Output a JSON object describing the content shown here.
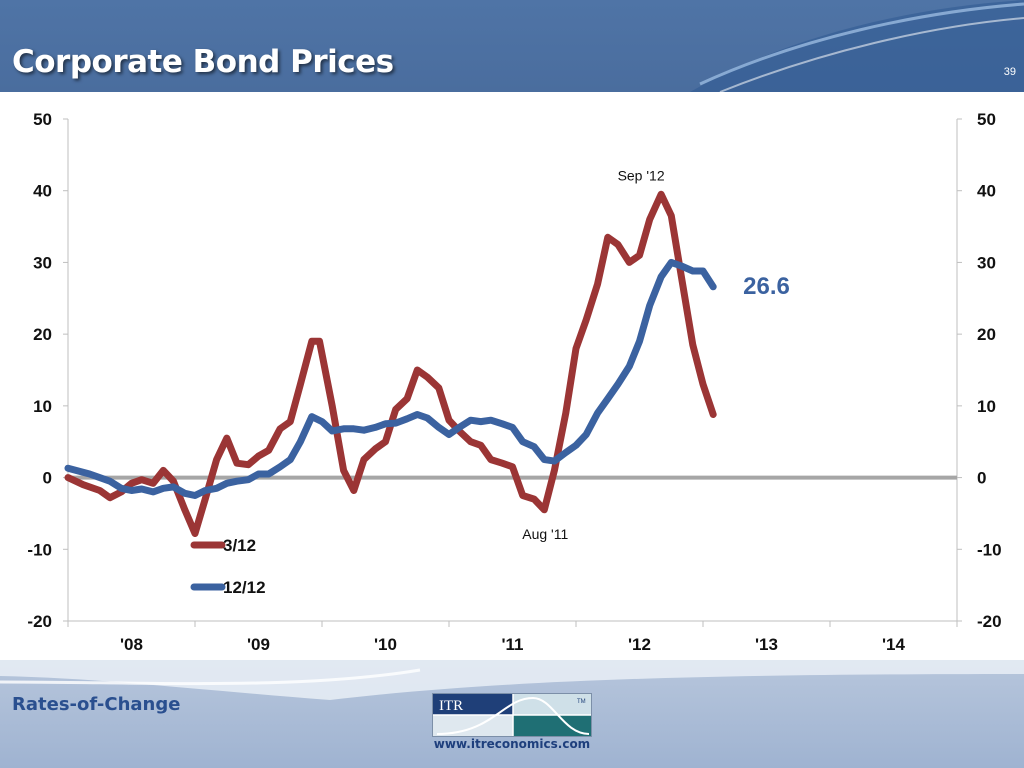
{
  "header": {
    "title": "Corporate Bond Prices",
    "slide_number": "39"
  },
  "footer": {
    "label": "Rates-of-Change",
    "url": "www.itreconomics.com",
    "logo_text": "ITR",
    "logo_tm": "TM"
  },
  "colors": {
    "header_blue": "#4f74a6",
    "series_3_12": "#9b3535",
    "series_12_12": "#3b62a0",
    "zero_line": "#a6a6a6"
  },
  "chart_data": {
    "type": "line",
    "ylim": [
      -20,
      50
    ],
    "y_ticks": [
      50,
      40,
      30,
      20,
      10,
      0,
      -10,
      -20
    ],
    "y_tick_labels": [
      "50",
      "40",
      "30",
      "20",
      "10",
      "0",
      "-10",
      "-20"
    ],
    "x_range": [
      2007.5,
      2014.5
    ],
    "x_tick_labels": [
      "'08",
      "'09",
      "'10",
      "'11",
      "'12",
      "'13",
      "'14"
    ],
    "dual_y_axis": true,
    "grid": false,
    "zero_line": true,
    "legend_position": "bottom-left inside plot",
    "series": [
      {
        "name": "3/12",
        "points": [
          [
            2007.5,
            0.0
          ],
          [
            2007.62,
            -1.0
          ],
          [
            2007.75,
            -1.8
          ],
          [
            2007.83,
            -2.8
          ],
          [
            2007.92,
            -2.0
          ],
          [
            2008.0,
            -0.8
          ],
          [
            2008.08,
            -0.3
          ],
          [
            2008.17,
            -0.8
          ],
          [
            2008.25,
            1.0
          ],
          [
            2008.33,
            -0.5
          ],
          [
            2008.42,
            -4.5
          ],
          [
            2008.5,
            -7.8
          ],
          [
            2008.58,
            -3.0
          ],
          [
            2008.67,
            2.5
          ],
          [
            2008.75,
            5.5
          ],
          [
            2008.83,
            2.0
          ],
          [
            2008.92,
            1.8
          ],
          [
            2009.0,
            3.0
          ],
          [
            2009.08,
            3.8
          ],
          [
            2009.17,
            6.8
          ],
          [
            2009.25,
            7.8
          ],
          [
            2009.33,
            13.0
          ],
          [
            2009.42,
            19.0
          ],
          [
            2009.48,
            19.0
          ],
          [
            2009.58,
            10.0
          ],
          [
            2009.67,
            1.0
          ],
          [
            2009.75,
            -1.8
          ],
          [
            2009.83,
            2.5
          ],
          [
            2009.92,
            4.0
          ],
          [
            2010.0,
            5.0
          ],
          [
            2010.08,
            9.5
          ],
          [
            2010.17,
            11.0
          ],
          [
            2010.25,
            15.0
          ],
          [
            2010.33,
            14.0
          ],
          [
            2010.42,
            12.5
          ],
          [
            2010.5,
            8.0
          ],
          [
            2010.58,
            6.5
          ],
          [
            2010.67,
            5.0
          ],
          [
            2010.75,
            4.5
          ],
          [
            2010.83,
            2.5
          ],
          [
            2010.92,
            2.0
          ],
          [
            2011.0,
            1.5
          ],
          [
            2011.08,
            -2.5
          ],
          [
            2011.17,
            -3.0
          ],
          [
            2011.25,
            -4.5
          ],
          [
            2011.33,
            1.0
          ],
          [
            2011.42,
            9.0
          ],
          [
            2011.5,
            18.0
          ],
          [
            2011.58,
            22.0
          ],
          [
            2011.67,
            27.0
          ],
          [
            2011.75,
            33.5
          ],
          [
            2011.83,
            32.5
          ],
          [
            2011.92,
            30.0
          ],
          [
            2012.0,
            31.0
          ],
          [
            2012.08,
            36.0
          ],
          [
            2012.17,
            39.5
          ],
          [
            2012.25,
            36.5
          ],
          [
            2012.33,
            28.0
          ],
          [
            2012.42,
            18.5
          ],
          [
            2012.5,
            13.0
          ],
          [
            2012.58,
            8.8
          ]
        ]
      },
      {
        "name": "12/12",
        "points": [
          [
            2007.5,
            1.3
          ],
          [
            2007.67,
            0.5
          ],
          [
            2007.83,
            -0.5
          ],
          [
            2007.92,
            -1.5
          ],
          [
            2008.0,
            -1.8
          ],
          [
            2008.08,
            -1.6
          ],
          [
            2008.17,
            -2.0
          ],
          [
            2008.25,
            -1.5
          ],
          [
            2008.33,
            -1.3
          ],
          [
            2008.42,
            -2.2
          ],
          [
            2008.5,
            -2.5
          ],
          [
            2008.58,
            -1.8
          ],
          [
            2008.67,
            -1.5
          ],
          [
            2008.75,
            -0.8
          ],
          [
            2008.83,
            -0.5
          ],
          [
            2008.92,
            -0.3
          ],
          [
            2009.0,
            0.5
          ],
          [
            2009.08,
            0.5
          ],
          [
            2009.17,
            1.5
          ],
          [
            2009.25,
            2.5
          ],
          [
            2009.33,
            5.0
          ],
          [
            2009.42,
            8.5
          ],
          [
            2009.5,
            7.8
          ],
          [
            2009.58,
            6.5
          ],
          [
            2009.67,
            6.8
          ],
          [
            2009.75,
            6.8
          ],
          [
            2009.83,
            6.6
          ],
          [
            2009.92,
            7.0
          ],
          [
            2010.0,
            7.5
          ],
          [
            2010.08,
            7.6
          ],
          [
            2010.17,
            8.2
          ],
          [
            2010.25,
            8.8
          ],
          [
            2010.33,
            8.3
          ],
          [
            2010.42,
            7.0
          ],
          [
            2010.5,
            6.0
          ],
          [
            2010.58,
            7.0
          ],
          [
            2010.67,
            8.0
          ],
          [
            2010.75,
            7.8
          ],
          [
            2010.83,
            8.0
          ],
          [
            2010.92,
            7.5
          ],
          [
            2011.0,
            7.0
          ],
          [
            2011.08,
            5.0
          ],
          [
            2011.17,
            4.3
          ],
          [
            2011.25,
            2.5
          ],
          [
            2011.33,
            2.3
          ],
          [
            2011.42,
            3.5
          ],
          [
            2011.5,
            4.5
          ],
          [
            2011.58,
            6.0
          ],
          [
            2011.67,
            9.0
          ],
          [
            2011.75,
            11.0
          ],
          [
            2011.83,
            13.0
          ],
          [
            2011.92,
            15.5
          ],
          [
            2012.0,
            19.0
          ],
          [
            2012.08,
            24.0
          ],
          [
            2012.17,
            28.0
          ],
          [
            2012.25,
            30.0
          ],
          [
            2012.33,
            29.5
          ],
          [
            2012.42,
            28.8
          ],
          [
            2012.5,
            28.8
          ],
          [
            2012.58,
            26.6
          ]
        ]
      }
    ],
    "annotations": [
      {
        "text": "Sep '12",
        "x": 2012.17,
        "y": 39.5
      },
      {
        "text": "Aug '11",
        "x": 2011.25,
        "y": -4.5
      }
    ],
    "callout": {
      "text": "26.6",
      "series": "12/12"
    }
  }
}
